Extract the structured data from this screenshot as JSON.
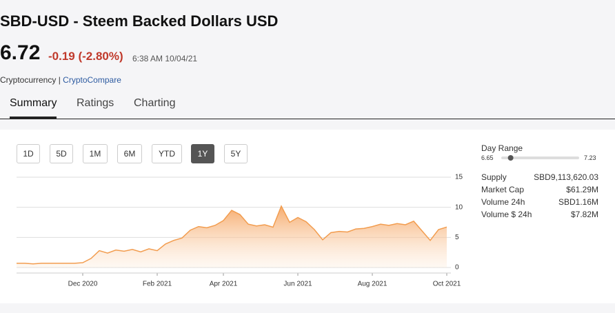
{
  "header": {
    "title": "SBD-USD - Steem Backed Dollars USD",
    "price": "6.72",
    "change": "-0.19 (-2.80%)",
    "time": "6:38 AM 10/04/21",
    "category": "Cryptocurrency",
    "separator": "|",
    "source": "CryptoCompare"
  },
  "tabs": [
    "Summary",
    "Ratings",
    "Charting"
  ],
  "range_buttons": [
    "1D",
    "5D",
    "1M",
    "6M",
    "YTD",
    "1Y",
    "5Y"
  ],
  "day_range": {
    "label": "Day Range",
    "low": "6.65",
    "high": "7.23"
  },
  "stats": [
    [
      "Supply",
      "SBD9,113,620.03"
    ],
    [
      "Market Cap",
      "$61.29M"
    ],
    [
      "Volume 24h",
      "SBD1.16M"
    ],
    [
      "Volume $ 24h",
      "$7.82M"
    ]
  ],
  "chart_data": {
    "type": "area",
    "color": "#f29c4e",
    "categories": [
      null,
      null,
      null,
      null,
      null,
      null,
      null,
      null,
      "Dec 2020",
      null,
      null,
      null,
      null,
      null,
      null,
      null,
      null,
      "Feb 2021",
      null,
      null,
      null,
      null,
      null,
      null,
      null,
      "Apr 2021",
      null,
      null,
      null,
      null,
      null,
      null,
      null,
      null,
      "Jun 2021",
      null,
      null,
      null,
      null,
      null,
      null,
      null,
      null,
      "Aug 2021",
      null,
      null,
      null,
      null,
      null,
      null,
      null,
      null,
      "Oct 2021"
    ],
    "values": [
      0.7,
      0.7,
      0.6,
      0.7,
      0.7,
      0.7,
      0.7,
      0.7,
      0.8,
      1.5,
      2.8,
      2.4,
      2.9,
      2.7,
      3.0,
      2.6,
      3.1,
      2.8,
      3.9,
      4.5,
      4.9,
      6.2,
      6.8,
      6.6,
      7.0,
      7.8,
      9.5,
      8.8,
      7.2,
      6.9,
      7.1,
      6.7,
      10.2,
      7.5,
      8.3,
      7.6,
      6.3,
      4.6,
      5.8,
      6.0,
      5.9,
      6.4,
      6.5,
      6.8,
      7.2,
      7.0,
      7.3,
      7.1,
      7.7,
      6.1,
      4.5,
      6.3,
      6.72
    ],
    "ylim": [
      0,
      15
    ],
    "yticks": [
      0,
      5,
      10,
      15
    ],
    "grid": true
  }
}
